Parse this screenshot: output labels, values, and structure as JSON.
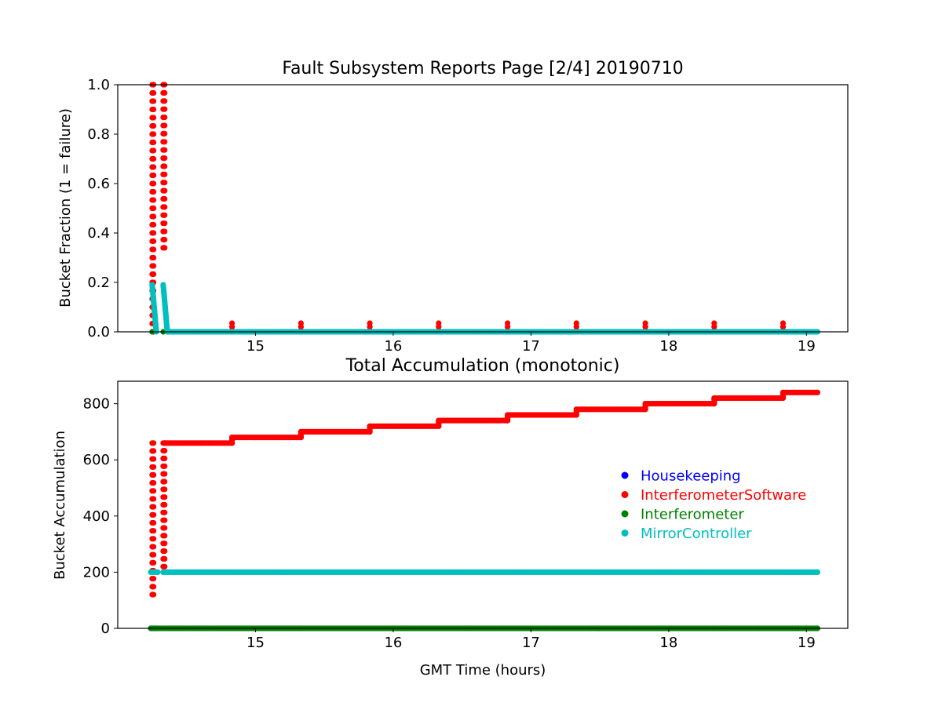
{
  "chart_data": [
    {
      "type": "scatter",
      "title": "Fault Subsystem Reports Page [2/4] 20190710",
      "xlabel": "",
      "ylabel": "Bucket Fraction (1 = failure)",
      "xlim": [
        14.0,
        19.3
      ],
      "ylim": [
        0.0,
        1.0
      ],
      "xticks": [
        "15",
        "16",
        "17",
        "18",
        "19"
      ],
      "yticks": [
        "0.0",
        "0.2",
        "0.4",
        "0.6",
        "0.8",
        "1.0"
      ],
      "grid": false,
      "series": [
        {
          "name": "InterferometerSoftware",
          "color": "#ff0000",
          "spikes": [
            {
              "x_start": 14.25,
              "x_end": 14.26,
              "y_from": 0.0,
              "y_to": 1.0
            },
            {
              "x_start": 14.33,
              "x_end": 14.34,
              "y_from": 0.34,
              "y_to": 1.0
            }
          ],
          "points": [
            {
              "x": 14.83,
              "y": 0.035
            },
            {
              "x": 14.83,
              "y": 0.02
            },
            {
              "x": 14.83,
              "y": 0.005
            },
            {
              "x": 15.33,
              "y": 0.035
            },
            {
              "x": 15.33,
              "y": 0.02
            },
            {
              "x": 15.33,
              "y": 0.005
            },
            {
              "x": 15.83,
              "y": 0.035
            },
            {
              "x": 15.83,
              "y": 0.02
            },
            {
              "x": 15.83,
              "y": 0.005
            },
            {
              "x": 16.33,
              "y": 0.035
            },
            {
              "x": 16.33,
              "y": 0.02
            },
            {
              "x": 16.33,
              "y": 0.005
            },
            {
              "x": 16.83,
              "y": 0.035
            },
            {
              "x": 16.83,
              "y": 0.02
            },
            {
              "x": 16.83,
              "y": 0.005
            },
            {
              "x": 17.33,
              "y": 0.035
            },
            {
              "x": 17.33,
              "y": 0.02
            },
            {
              "x": 17.33,
              "y": 0.005
            },
            {
              "x": 17.83,
              "y": 0.035
            },
            {
              "x": 17.83,
              "y": 0.02
            },
            {
              "x": 17.83,
              "y": 0.005
            },
            {
              "x": 18.33,
              "y": 0.035
            },
            {
              "x": 18.33,
              "y": 0.02
            },
            {
              "x": 18.33,
              "y": 0.005
            },
            {
              "x": 18.83,
              "y": 0.035
            },
            {
              "x": 18.83,
              "y": 0.02
            },
            {
              "x": 18.83,
              "y": 0.005
            }
          ]
        },
        {
          "name": "MirrorController",
          "color": "#00bfbf",
          "ramps": [
            {
              "x_start": 14.25,
              "x_end": 14.28,
              "y_from": 0.19,
              "y_to": 0.0
            },
            {
              "x_start": 14.33,
              "x_end": 14.36,
              "y_from": 0.19,
              "y_to": 0.0
            }
          ],
          "flat": {
            "x_start": 14.36,
            "x_end": 19.08,
            "y": 0.0
          }
        },
        {
          "name": "Interferometer",
          "color": "#008000",
          "points": [
            {
              "x": 14.25,
              "y": 0.0
            },
            {
              "x": 14.33,
              "y": 0.0
            }
          ]
        }
      ]
    },
    {
      "type": "scatter",
      "title": "Total Accumulation (monotonic)",
      "xlabel": "GMT Time (hours)",
      "ylabel": "Bucket Accumulation",
      "xlim": [
        14.0,
        19.3
      ],
      "ylim": [
        0,
        880
      ],
      "xticks": [
        "15",
        "16",
        "17",
        "18",
        "19"
      ],
      "yticks": [
        "0",
        "200",
        "400",
        "600",
        "800"
      ],
      "grid": false,
      "legend": {
        "placement": "center-right",
        "entries": [
          {
            "label": "Housekeeping",
            "color": "#0000ff"
          },
          {
            "label": "InterferometerSoftware",
            "color": "#ff0000"
          },
          {
            "label": "Interferometer",
            "color": "#008000"
          },
          {
            "label": "MirrorController",
            "color": "#00bfbf"
          }
        ]
      },
      "series": [
        {
          "name": "InterferometerSoftware",
          "color": "#ff0000",
          "spikes": [
            {
              "x_start": 14.25,
              "x_end": 14.26,
              "y_from": 120,
              "y_to": 660
            },
            {
              "x_start": 14.33,
              "x_end": 14.34,
              "y_from": 220,
              "y_to": 660
            }
          ],
          "steps": [
            {
              "x_start": 14.34,
              "x_end": 14.83,
              "y": 660
            },
            {
              "x_start": 14.83,
              "x_end": 15.33,
              "y": 680
            },
            {
              "x_start": 15.33,
              "x_end": 15.83,
              "y": 700
            },
            {
              "x_start": 15.83,
              "x_end": 16.33,
              "y": 720
            },
            {
              "x_start": 16.33,
              "x_end": 16.83,
              "y": 740
            },
            {
              "x_start": 16.83,
              "x_end": 17.33,
              "y": 760
            },
            {
              "x_start": 17.33,
              "x_end": 17.83,
              "y": 780
            },
            {
              "x_start": 17.83,
              "x_end": 18.33,
              "y": 800
            },
            {
              "x_start": 18.33,
              "x_end": 18.83,
              "y": 820
            },
            {
              "x_start": 18.83,
              "x_end": 19.08,
              "y": 840
            }
          ]
        },
        {
          "name": "MirrorController",
          "color": "#00bfbf",
          "flats": [
            {
              "x_start": 14.24,
              "x_end": 14.29,
              "y": 200
            },
            {
              "x_start": 14.33,
              "x_end": 19.08,
              "y": 200
            }
          ]
        },
        {
          "name": "Interferometer",
          "color": "#008000",
          "flat": {
            "x_start": 14.24,
            "x_end": 19.08,
            "y": 0
          }
        },
        {
          "name": "Housekeeping",
          "color": "#0000ff",
          "flat": {
            "x_start": 14.24,
            "x_end": 14.29,
            "y": 0
          }
        }
      ]
    }
  ]
}
